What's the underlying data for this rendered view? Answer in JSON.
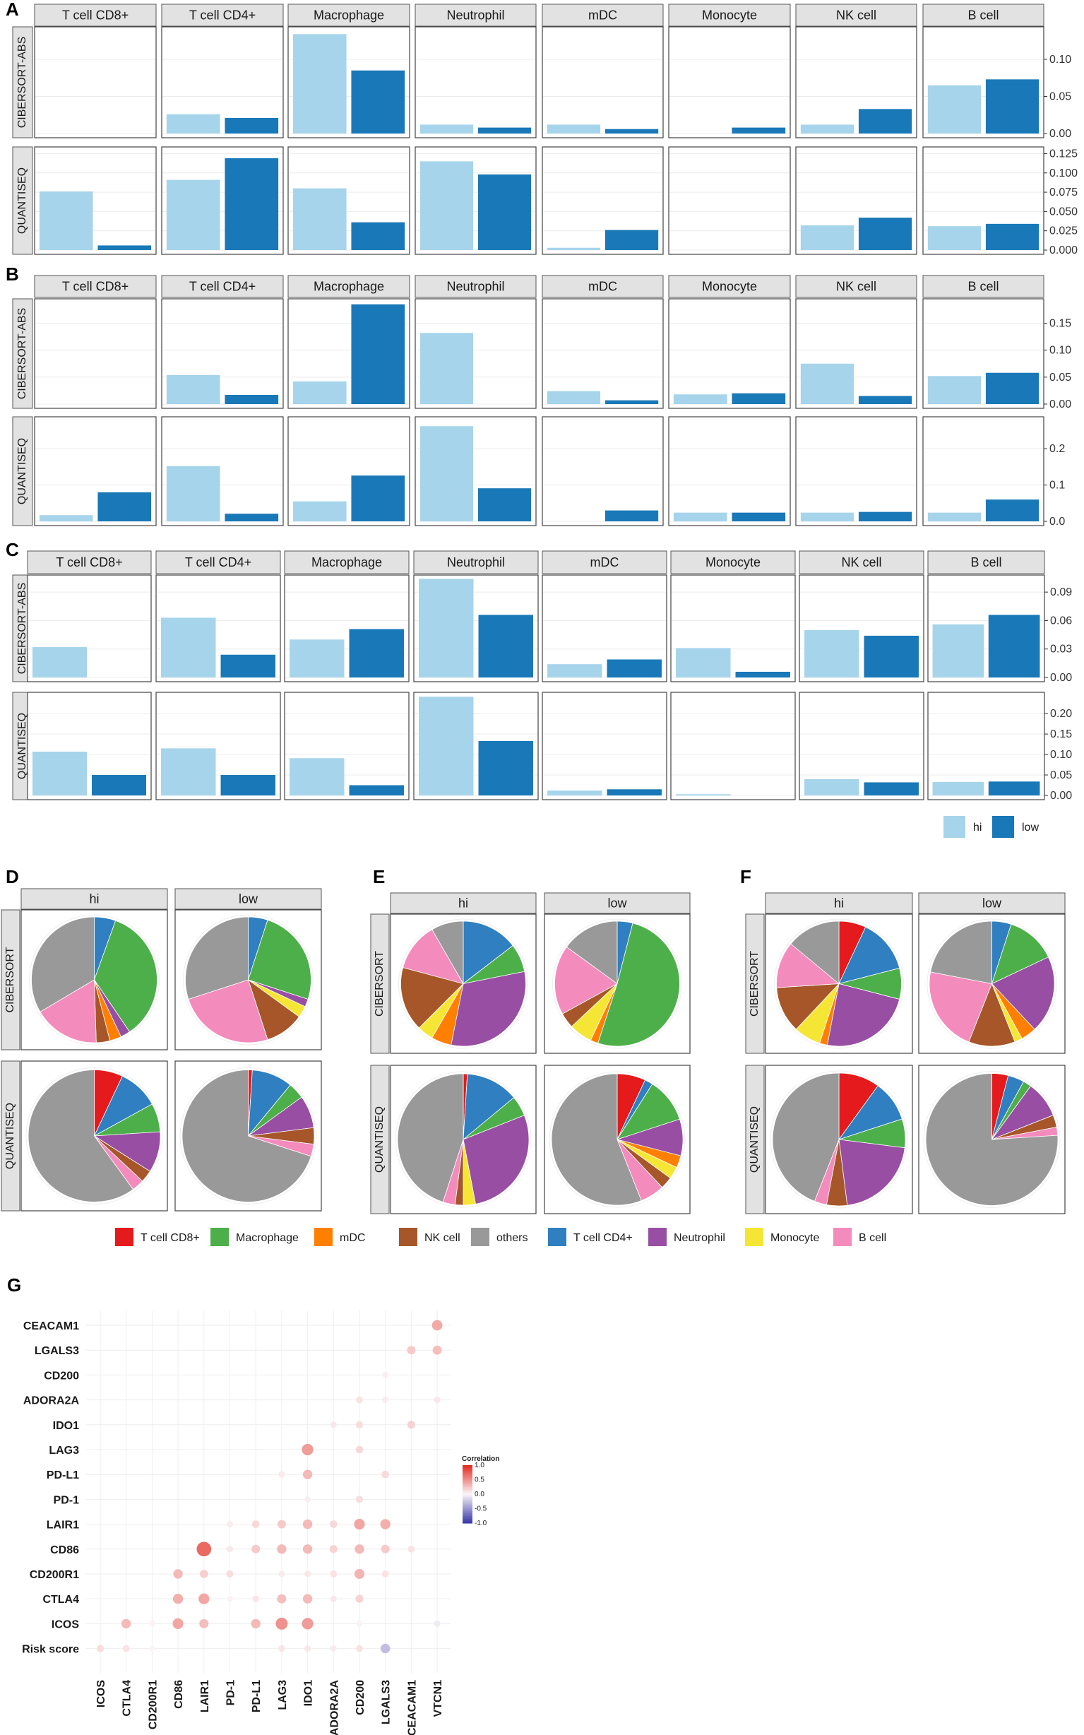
{
  "colors": {
    "hi": "#a6d4eb",
    "low": "#1878b8",
    "strip_bg": "#e2e2e2",
    "T cell CD8+": "#e41a1c",
    "Macrophage": "#4daf4a",
    "mDC": "#ff7f00",
    "NK cell": "#a65628",
    "others": "#999999",
    "T cell CD4+": "#2f7fc1",
    "Neutrophil": "#984ea3",
    "Monocyte": "#f5e636",
    "B cell": "#f38bbc",
    "risk_label": "#e41a1c"
  },
  "bar_panels": [
    {
      "letter": "A",
      "celltypes": [
        "T cell CD8+",
        "T cell CD4+",
        "Macrophage",
        "Neutrophil",
        "mDC",
        "Monocyte",
        "NK cell",
        "B cell"
      ],
      "rows": [
        {
          "method": "CIBERSORT-ABS",
          "ymax": 0.14,
          "ticks": [
            "0.00",
            "0.05",
            "0.10"
          ],
          "tick_values": [
            0,
            0.05,
            0.1
          ],
          "hi": [
            0.0,
            0.026,
            0.134,
            0.012,
            0.012,
            0.0,
            0.012,
            0.065
          ],
          "low": [
            0.0,
            0.021,
            0.085,
            0.008,
            0.006,
            0.008,
            0.033,
            0.073
          ]
        },
        {
          "method": "QUANTISEQ",
          "ymax": 0.13,
          "ticks": [
            "0.000",
            "0.025",
            "0.050",
            "0.075",
            "0.100",
            "0.125"
          ],
          "tick_values": [
            0,
            0.025,
            0.05,
            0.075,
            0.1,
            0.125
          ],
          "hi": [
            0.076,
            0.091,
            0.08,
            0.115,
            0.003,
            0.0,
            0.032,
            0.031
          ],
          "low": [
            0.006,
            0.119,
            0.036,
            0.098,
            0.026,
            0.0,
            0.042,
            0.034
          ]
        }
      ]
    },
    {
      "letter": "B",
      "celltypes": [
        "T cell CD8+",
        "T cell CD4+",
        "Macrophage",
        "Neutrophil",
        "mDC",
        "Monocyte",
        "NK cell",
        "B cell"
      ],
      "rows": [
        {
          "method": "CIBERSORT-ABS",
          "ymax": 0.19,
          "ticks": [
            "0.00",
            "0.05",
            "0.10",
            "0.15"
          ],
          "tick_values": [
            0,
            0.05,
            0.1,
            0.15
          ],
          "hi": [
            0.0,
            0.054,
            0.042,
            0.132,
            0.024,
            0.018,
            0.075,
            0.052
          ],
          "low": [
            0.0,
            0.017,
            0.185,
            0.0,
            0.007,
            0.02,
            0.015,
            0.058
          ]
        },
        {
          "method": "QUANTISEQ",
          "ymax": 0.28,
          "ticks": [
            "0.0",
            "0.1",
            "0.2"
          ],
          "tick_values": [
            0,
            0.1,
            0.2
          ],
          "hi": [
            0.017,
            0.152,
            0.055,
            0.262,
            0.0,
            0.024,
            0.024,
            0.024
          ],
          "low": [
            0.08,
            0.021,
            0.126,
            0.091,
            0.03,
            0.024,
            0.026,
            0.06
          ]
        }
      ]
    },
    {
      "letter": "C",
      "celltypes": [
        "T cell CD8+",
        "T cell CD4+",
        "Macrophage",
        "Neutrophil",
        "mDC",
        "Monocyte",
        "NK cell",
        "B cell"
      ],
      "rows": [
        {
          "method": "CIBERSORT-ABS",
          "ymax": 0.105,
          "ticks": [
            "0.00",
            "0.03",
            "0.06",
            "0.09"
          ],
          "tick_values": [
            0,
            0.03,
            0.06,
            0.09
          ],
          "hi": [
            0.032,
            0.063,
            0.04,
            0.104,
            0.014,
            0.031,
            0.05,
            0.056
          ],
          "low": [
            0.0,
            0.024,
            0.051,
            0.066,
            0.019,
            0.006,
            0.044,
            0.066
          ]
        },
        {
          "method": "QUANTISEQ",
          "ymax": 0.245,
          "ticks": [
            "0.00",
            "0.05",
            "0.10",
            "0.15",
            "0.20"
          ],
          "tick_values": [
            0,
            0.05,
            0.1,
            0.15,
            0.2
          ],
          "hi": [
            0.107,
            0.115,
            0.091,
            0.241,
            0.012,
            0.003,
            0.04,
            0.033
          ],
          "low": [
            0.05,
            0.05,
            0.025,
            0.133,
            0.015,
            0.0,
            0.032,
            0.034
          ]
        }
      ]
    }
  ],
  "bar_legend": {
    "hi": "hi",
    "low": "low"
  },
  "pie_panels": [
    {
      "letter": "D",
      "cols": [
        "hi",
        "low"
      ],
      "rows": [
        "CIBERSORT",
        "QUANTISEQ"
      ],
      "pies": [
        [
          [
            [
              "T cell CD4+",
              0.055
            ],
            [
              "Macrophage",
              0.35
            ],
            [
              "Neutrophil",
              0.025
            ],
            [
              "mDC",
              0.03
            ],
            [
              "NK cell",
              0.035
            ],
            [
              "B cell",
              0.17
            ],
            [
              "others",
              0.335
            ]
          ],
          [
            [
              "T cell CD4+",
              0.05
            ],
            [
              "Macrophage",
              0.25
            ],
            [
              "Neutrophil",
              0.02
            ],
            [
              "Monocyte",
              0.03
            ],
            [
              "NK cell",
              0.1
            ],
            [
              "B cell",
              0.25
            ],
            [
              "others",
              0.3
            ]
          ]
        ],
        [
          [
            [
              "T cell CD8+",
              0.07
            ],
            [
              "T cell CD4+",
              0.1
            ],
            [
              "Macrophage",
              0.07
            ],
            [
              "Neutrophil",
              0.1
            ],
            [
              "NK cell",
              0.03
            ],
            [
              "B cell",
              0.03
            ],
            [
              "others",
              0.6
            ]
          ],
          [
            [
              "T cell CD8+",
              0.01
            ],
            [
              "T cell CD4+",
              0.1
            ],
            [
              "Macrophage",
              0.04
            ],
            [
              "Neutrophil",
              0.08
            ],
            [
              "NK cell",
              0.04
            ],
            [
              "B cell",
              0.03
            ],
            [
              "others",
              0.7
            ]
          ]
        ]
      ]
    },
    {
      "letter": "E",
      "cols": [
        "hi",
        "low"
      ],
      "rows": [
        "CIBERSORT",
        "QUANTISEQ"
      ],
      "pies": [
        [
          [
            [
              "T cell CD4+",
              0.14
            ],
            [
              "Macrophage",
              0.07
            ],
            [
              "Neutrophil",
              0.3
            ],
            [
              "mDC",
              0.05
            ],
            [
              "Monocyte",
              0.04
            ],
            [
              "NK cell",
              0.16
            ],
            [
              "B cell",
              0.12
            ],
            [
              "others",
              0.08
            ]
          ],
          [
            [
              "T cell CD4+",
              0.04
            ],
            [
              "Macrophage",
              0.51
            ],
            [
              "mDC",
              0.02
            ],
            [
              "Monocyte",
              0.06
            ],
            [
              "NK cell",
              0.04
            ],
            [
              "B cell",
              0.18
            ],
            [
              "others",
              0.15
            ]
          ]
        ],
        [
          [
            [
              "T cell CD8+",
              0.01
            ],
            [
              "T cell CD4+",
              0.13
            ],
            [
              "Macrophage",
              0.05
            ],
            [
              "Neutrophil",
              0.28
            ],
            [
              "Monocyte",
              0.03
            ],
            [
              "NK cell",
              0.02
            ],
            [
              "B cell",
              0.03
            ],
            [
              "others",
              0.45
            ]
          ],
          [
            [
              "T cell CD8+",
              0.07
            ],
            [
              "T cell CD4+",
              0.02
            ],
            [
              "Macrophage",
              0.11
            ],
            [
              "Neutrophil",
              0.09
            ],
            [
              "mDC",
              0.03
            ],
            [
              "Monocyte",
              0.03
            ],
            [
              "NK cell",
              0.03
            ],
            [
              "B cell",
              0.06
            ],
            [
              "others",
              0.56
            ]
          ]
        ]
      ]
    },
    {
      "letter": "F",
      "cols": [
        "hi",
        "low"
      ],
      "rows": [
        "CIBERSORT",
        "QUANTISEQ"
      ],
      "pies": [
        [
          [
            [
              "T cell CD8+",
              0.07
            ],
            [
              "T cell CD4+",
              0.14
            ],
            [
              "Macrophage",
              0.08
            ],
            [
              "Neutrophil",
              0.24
            ],
            [
              "mDC",
              0.02
            ],
            [
              "Monocyte",
              0.07
            ],
            [
              "NK cell",
              0.12
            ],
            [
              "B cell",
              0.12
            ],
            [
              "others",
              0.14
            ]
          ],
          [
            [
              "T cell CD4+",
              0.05
            ],
            [
              "Macrophage",
              0.13
            ],
            [
              "Neutrophil",
              0.2
            ],
            [
              "mDC",
              0.04
            ],
            [
              "Monocyte",
              0.02
            ],
            [
              "NK cell",
              0.12
            ],
            [
              "B cell",
              0.22
            ],
            [
              "others",
              0.22
            ]
          ]
        ],
        [
          [
            [
              "T cell CD8+",
              0.1
            ],
            [
              "T cell CD4+",
              0.1
            ],
            [
              "Macrophage",
              0.07
            ],
            [
              "Neutrophil",
              0.21
            ],
            [
              "NK cell",
              0.05
            ],
            [
              "B cell",
              0.03
            ],
            [
              "others",
              0.44
            ]
          ],
          [
            [
              "T cell CD8+",
              0.04
            ],
            [
              "T cell CD4+",
              0.04
            ],
            [
              "Macrophage",
              0.02
            ],
            [
              "Neutrophil",
              0.09
            ],
            [
              "NK cell",
              0.03
            ],
            [
              "B cell",
              0.02
            ],
            [
              "others",
              0.76
            ]
          ]
        ]
      ]
    }
  ],
  "pie_legend": [
    "T cell CD8+",
    "Macrophage",
    "mDC",
    "NK cell",
    "others",
    "T cell CD4+",
    "Neutrophil",
    "Monocyte",
    "B cell"
  ],
  "dot_plot": {
    "letter": "G",
    "genes_y": [
      "CEACAM1",
      "LGALS3",
      "CD200",
      "ADORA2A",
      "IDO1",
      "LAG3",
      "PD-L1",
      "PD-1",
      "LAIR1",
      "CD86",
      "CD200R1",
      "CTLA4",
      "ICOS",
      "Risk score"
    ],
    "genes_x": [
      "ICOS",
      "CTLA4",
      "CD200R1",
      "CD86",
      "LAIR1",
      "PD-1",
      "PD-L1",
      "LAG3",
      "IDO1",
      "ADORA2A",
      "CD200",
      "LGALS3",
      "CEACAM1",
      "VTCN1"
    ],
    "colorbar": {
      "title": "Correlation",
      "ticks": [
        "1.0",
        "0.5",
        "0.0",
        "-0.5",
        "-1.0"
      ],
      "tick_values": [
        1.0,
        0.5,
        0.0,
        -0.5,
        -1.0
      ]
    },
    "values": [
      [
        null,
        null,
        null,
        null,
        null,
        null,
        null,
        null,
        null,
        null,
        null,
        null,
        null,
        0.38
      ],
      [
        null,
        null,
        null,
        null,
        null,
        null,
        null,
        null,
        null,
        null,
        null,
        null,
        0.22,
        0.28
      ],
      [
        null,
        null,
        null,
        null,
        null,
        null,
        null,
        null,
        null,
        null,
        null,
        0.04,
        null,
        null
      ],
      [
        null,
        null,
        null,
        null,
        null,
        null,
        null,
        null,
        null,
        null,
        0.1,
        0.05,
        null,
        0.07
      ],
      [
        null,
        null,
        null,
        null,
        null,
        null,
        null,
        null,
        null,
        0.07,
        0.12,
        null,
        0.18,
        null
      ],
      [
        null,
        null,
        null,
        null,
        null,
        null,
        null,
        null,
        0.45,
        null,
        0.15,
        null,
        null,
        null
      ],
      [
        null,
        null,
        null,
        null,
        null,
        null,
        null,
        0.06,
        0.3,
        null,
        null,
        0.14,
        null,
        null
      ],
      [
        null,
        null,
        null,
        null,
        null,
        null,
        null,
        null,
        0.04,
        null,
        0.12,
        null,
        null,
        null
      ],
      [
        null,
        null,
        null,
        null,
        null,
        0.05,
        0.15,
        0.22,
        0.3,
        0.15,
        0.4,
        0.35,
        null,
        null
      ],
      [
        null,
        null,
        null,
        null,
        0.7,
        0.07,
        0.22,
        0.3,
        0.3,
        0.18,
        0.3,
        0.22,
        0.1,
        null
      ],
      [
        null,
        null,
        null,
        0.3,
        0.2,
        0.12,
        null,
        0.06,
        0.07,
        0.1,
        0.33,
        0.1,
        null,
        null
      ],
      [
        null,
        null,
        null,
        0.35,
        0.4,
        0.02,
        0.08,
        0.28,
        0.3,
        0.07,
        0.18,
        null,
        null,
        null
      ],
      [
        null,
        0.3,
        0.02,
        0.4,
        0.28,
        null,
        0.3,
        0.5,
        0.45,
        null,
        0.02,
        null,
        null,
        -0.06
      ],
      [
        0.12,
        0.1,
        0.01,
        null,
        null,
        null,
        null,
        0.08,
        0.07,
        0.06,
        0.1,
        -0.3,
        null,
        null
      ]
    ]
  }
}
